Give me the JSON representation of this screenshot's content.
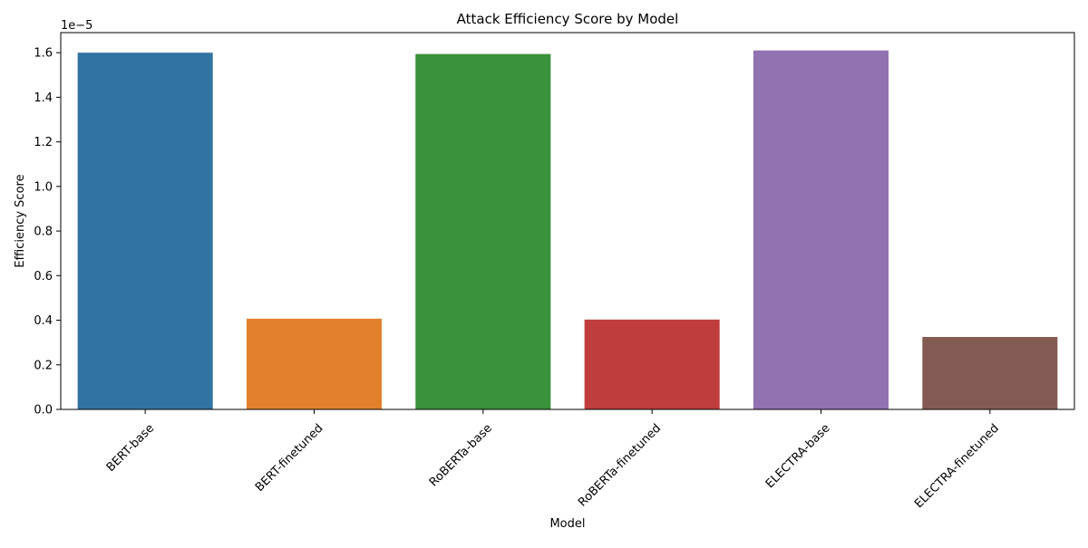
{
  "chart_data": {
    "type": "bar",
    "title": "Attack Efficiency Score by Model",
    "xlabel": "Model",
    "ylabel": "Efficiency Score",
    "y_offset_label": "1e−5",
    "y_scale_factor": 1e-05,
    "categories": [
      "BERT-base",
      "BERT-finetuned",
      "RoBERTa-base",
      "RoBERTa-finetuned",
      "ELECTRA-base",
      "ELECTRA-finetuned"
    ],
    "values": [
      1.6e-05,
      4.07e-06,
      1.594e-05,
      4.03e-06,
      1.61e-05,
      3.25e-06
    ],
    "colors": [
      "#3274a1",
      "#e1812c",
      "#3a923a",
      "#c03d3e",
      "#9372b2",
      "#845b53"
    ],
    "ylim": [
      0,
      1.69e-05
    ],
    "yticks": [
      0,
      2e-06,
      4e-06,
      6e-06,
      8e-06,
      1e-05,
      1.2e-05,
      1.4e-05,
      1.6e-05
    ],
    "ytick_labels": [
      "0.0",
      "0.2",
      "0.4",
      "0.6",
      "0.8",
      "1.0",
      "1.2",
      "1.4",
      "1.6"
    ],
    "xtick_rotation_deg": -45,
    "grid": false,
    "legend": "none"
  }
}
